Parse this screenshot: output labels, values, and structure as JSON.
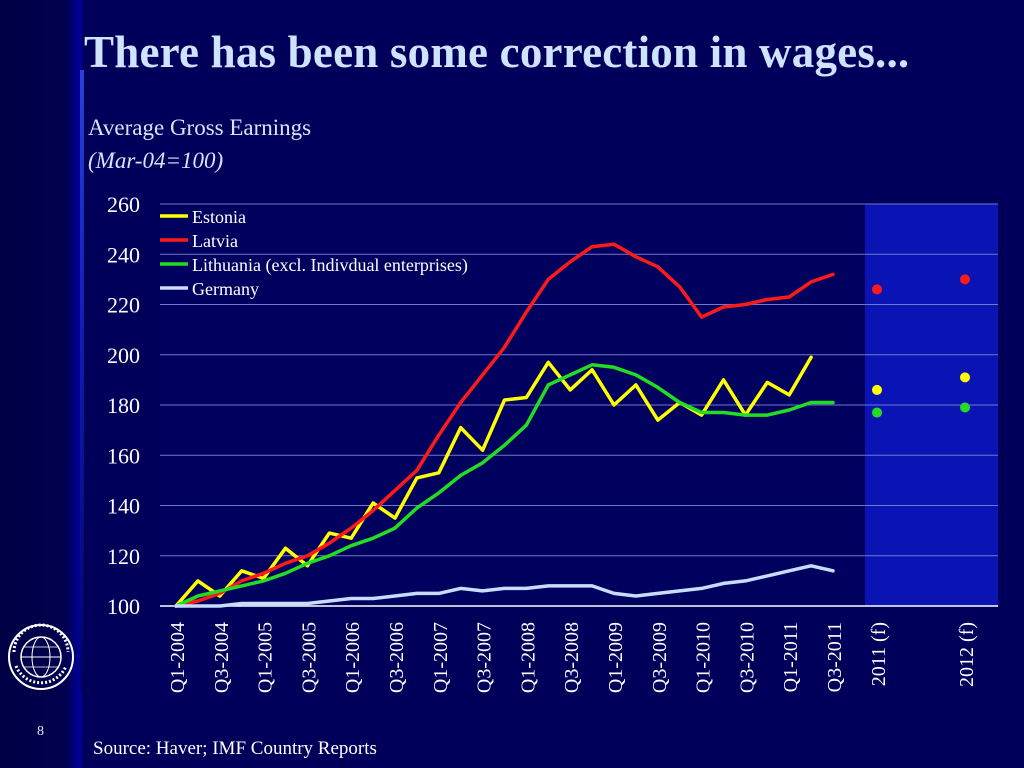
{
  "slide": {
    "title": "There has been some correction in wages...",
    "subtitle": "Average Gross Earnings",
    "subtitle_note": "(Mar-04=100)",
    "page_number": "8",
    "source": "Source: Haver; IMF Country Reports",
    "logo_icon": "imf-seal-icon"
  },
  "colors": {
    "background": "#00005a",
    "forecast_band": "#0a14b4",
    "grid": "#6f79c9",
    "estonia": "#ffff00",
    "latvia": "#ff1a1a",
    "lithuania": "#22dd22",
    "germany": "#c8dcff"
  },
  "chart_data": {
    "type": "line",
    "ylim": [
      100,
      260
    ],
    "yticks": [
      100,
      120,
      140,
      160,
      180,
      200,
      220,
      240,
      260
    ],
    "grid": "horizontal",
    "legend_position": "top-left",
    "x_labels": [
      "Q1-2004",
      "Q3-2004",
      "Q1-2005",
      "Q3-2005",
      "Q1-2006",
      "Q3-2006",
      "Q1-2007",
      "Q3-2007",
      "Q1-2008",
      "Q3-2008",
      "Q1-2009",
      "Q3-2009",
      "Q1-2010",
      "Q3-2010",
      "Q1-2011",
      "Q3-2011",
      "2011 (f)",
      "2012 (f)"
    ],
    "quarters": [
      "Q1-2004",
      "Q2-2004",
      "Q3-2004",
      "Q4-2004",
      "Q1-2005",
      "Q2-2005",
      "Q3-2005",
      "Q4-2005",
      "Q1-2006",
      "Q2-2006",
      "Q3-2006",
      "Q4-2006",
      "Q1-2007",
      "Q2-2007",
      "Q3-2007",
      "Q4-2007",
      "Q1-2008",
      "Q2-2008",
      "Q3-2008",
      "Q4-2008",
      "Q1-2009",
      "Q2-2009",
      "Q3-2009",
      "Q4-2009",
      "Q1-2010",
      "Q2-2010",
      "Q3-2010",
      "Q4-2010",
      "Q1-2011",
      "Q2-2011",
      "Q3-2011"
    ],
    "series": [
      {
        "name": "Estonia",
        "color": "#ffff00",
        "values": [
          100,
          110,
          104,
          114,
          111,
          123,
          116,
          129,
          127,
          141,
          135,
          151,
          153,
          171,
          162,
          182,
          183,
          197,
          186,
          194,
          180,
          188,
          174,
          181,
          176,
          190,
          176,
          189,
          184,
          199,
          null
        ],
        "forecast": [
          {
            "label": "2011 (f)",
            "value": 186
          },
          {
            "label": "2012 (f)",
            "value": 191
          }
        ]
      },
      {
        "name": "Latvia",
        "color": "#ff1a1a",
        "values": [
          100,
          102,
          105,
          110,
          113,
          117,
          120,
          125,
          131,
          138,
          146,
          154,
          168,
          181,
          192,
          203,
          217,
          230,
          237,
          243,
          244,
          239,
          235,
          227,
          215,
          219,
          220,
          222,
          223,
          229,
          232
        ],
        "forecast": [
          {
            "label": "2011 (f)",
            "value": 226
          },
          {
            "label": "2012 (f)",
            "value": 230
          }
        ]
      },
      {
        "name": "Lithuania (excl. Indivdual enterprises)",
        "color": "#22dd22",
        "values": [
          100,
          104,
          106,
          108,
          110,
          113,
          117,
          120,
          124,
          127,
          131,
          139,
          145,
          152,
          157,
          164,
          172,
          188,
          192,
          196,
          195,
          192,
          187,
          181,
          177,
          177,
          176,
          176,
          178,
          181,
          181
        ],
        "forecast": [
          {
            "label": "2011 (f)",
            "value": 177
          },
          {
            "label": "2012 (f)",
            "value": 179
          }
        ]
      },
      {
        "name": "Germany",
        "color": "#c8dcff",
        "values": [
          100,
          100,
          100,
          101,
          101,
          101,
          101,
          102,
          103,
          103,
          104,
          105,
          105,
          107,
          106,
          107,
          107,
          108,
          108,
          108,
          105,
          104,
          105,
          106,
          107,
          109,
          110,
          112,
          114,
          116,
          114
        ],
        "forecast": []
      }
    ]
  }
}
